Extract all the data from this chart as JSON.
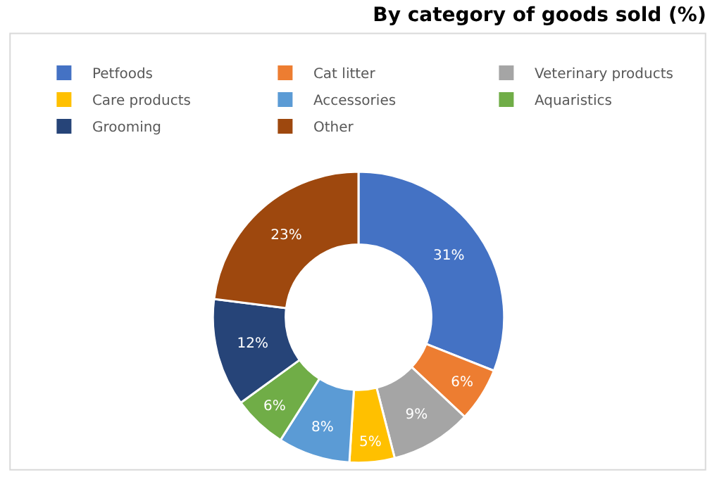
{
  "chart_data": {
    "type": "donut",
    "title": "By category of goods sold (%)",
    "categories": [
      "Petfoods",
      "Cat litter",
      "Veterinary products",
      "Care products",
      "Accessories",
      "Aquaristics",
      "Grooming",
      "Other"
    ],
    "values": [
      31,
      6,
      9,
      5,
      8,
      6,
      12,
      23
    ],
    "value_labels": [
      "31%",
      "6%",
      "9%",
      "5%",
      "8%",
      "6%",
      "12%",
      "23%"
    ],
    "colors": [
      "#4472c4",
      "#ed7d31",
      "#a5a5a5",
      "#ffc000",
      "#5b9bd5",
      "#70ad47",
      "#264478",
      "#9e480e"
    ],
    "legend": "top"
  }
}
